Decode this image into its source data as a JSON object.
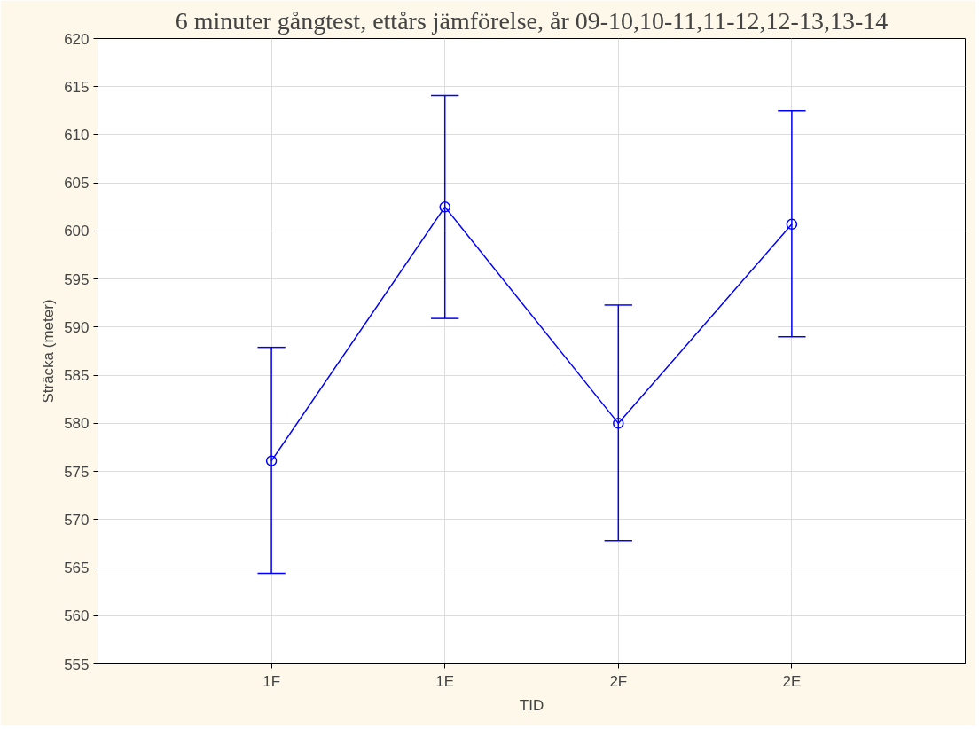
{
  "chart_data": {
    "type": "line",
    "title": "6 minuter gångtest, ettårs jämförelse, år 09-10,10-11,11-12,12-13,13-14",
    "xlabel": "TID",
    "ylabel": "Sträcka (meter)",
    "categories": [
      "1F",
      "1E",
      "2F",
      "2E"
    ],
    "series": [
      {
        "color": "#0000ff",
        "values": [
          576.1,
          602.5,
          580.0,
          600.7
        ],
        "errors": [
          [
            564.4,
            587.9
          ],
          [
            590.9,
            614.1
          ],
          [
            567.8,
            592.3
          ],
          [
            589.0,
            612.5
          ]
        ]
      }
    ],
    "ylim": [
      555,
      620
    ],
    "yticks": [
      555,
      560,
      565,
      570,
      575,
      580,
      585,
      590,
      595,
      600,
      605,
      610,
      615,
      620
    ],
    "grid": true,
    "marker": "circle",
    "line_style": "solid"
  }
}
